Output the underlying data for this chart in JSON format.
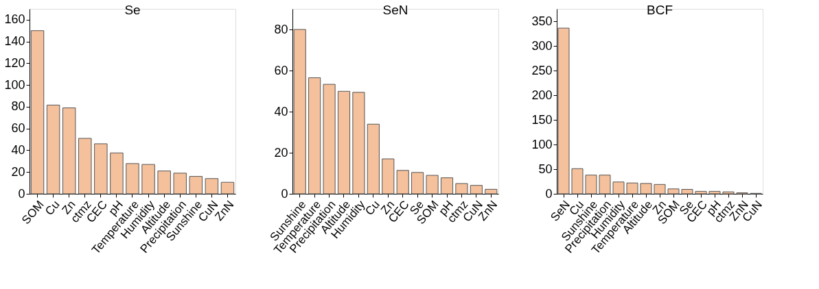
{
  "chart_data": [
    {
      "type": "bar",
      "title": "Se",
      "categories": [
        "SOM",
        "Cu",
        "Zn",
        "ctmz",
        "CEC",
        "pH",
        "Temperature",
        "Humidity",
        "Altitude",
        "Precipitation",
        "Sunshine",
        "CuN",
        "ZnN"
      ],
      "values": [
        150,
        81.6,
        79,
        51,
        46,
        37.6,
        27.8,
        27,
        21,
        19,
        16,
        14,
        10.6
      ],
      "color": "#f4c19c",
      "ylim": [
        0,
        170
      ],
      "yticks": [
        0,
        20,
        40,
        60,
        80,
        100,
        120,
        140,
        160
      ],
      "grid": false
    },
    {
      "type": "bar",
      "title": "SeN",
      "categories": [
        "Sunshine",
        "Temperature",
        "Precipitation",
        "Altitude",
        "Humidity",
        "Cu",
        "Zn",
        "CEC",
        "Se",
        "SOM",
        "pH",
        "ctmz",
        "CuN",
        "ZnN"
      ],
      "values": [
        80,
        56.5,
        53.3,
        49.9,
        49.4,
        33.9,
        17,
        11.4,
        10.4,
        9,
        7.8,
        5,
        4.1,
        2.2
      ],
      "color": "#f4c19c",
      "ylim": [
        0,
        90
      ],
      "yticks": [
        0,
        20,
        40,
        60,
        80
      ],
      "grid": false
    },
    {
      "type": "bar",
      "title": "BCF",
      "categories": [
        "SeN",
        "Cu",
        "Sunshine",
        "Precipitation",
        "Humidity",
        "Temperature",
        "Altitude",
        "Zn",
        "SOM",
        "Se",
        "CEC",
        "pH",
        "ctmz",
        "ZnN",
        "CuN"
      ],
      "values": [
        336,
        51,
        38,
        38,
        24,
        22,
        21,
        19,
        10,
        9,
        5,
        5,
        4,
        2,
        1
      ],
      "color": "#f4c19c",
      "ylim": [
        0,
        375
      ],
      "yticks": [
        0,
        50,
        100,
        150,
        200,
        250,
        300,
        350
      ],
      "grid": false
    }
  ]
}
